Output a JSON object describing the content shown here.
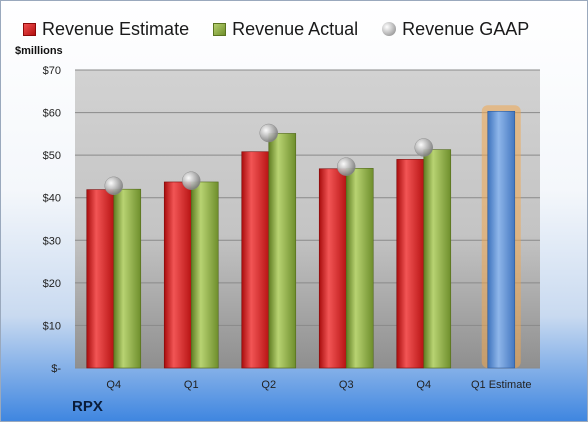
{
  "legend": {
    "estimate": "Revenue Estimate",
    "actual": "Revenue Actual",
    "gaap": "Revenue GAAP"
  },
  "unit_label": "$millions",
  "company": "RPX",
  "colors": {
    "estimate": "#d42222",
    "actual": "#8fb040",
    "gaap": "#b0b0b0",
    "forecast": "#5f94d8",
    "forecast_glow": "#f0a850"
  },
  "chart_data": {
    "type": "bar",
    "categories": [
      "Q4",
      "Q1",
      "Q2",
      "Q3",
      "Q4",
      "Q1 Estimate"
    ],
    "ylim": [
      0,
      70
    ],
    "y_ticks": [
      {
        "value": 0,
        "label": "$-"
      },
      {
        "value": 10,
        "label": "$10"
      },
      {
        "value": 20,
        "label": "$20"
      },
      {
        "value": 30,
        "label": "$30"
      },
      {
        "value": 40,
        "label": "$40"
      },
      {
        "value": 50,
        "label": "$50"
      },
      {
        "value": 60,
        "label": "$60"
      },
      {
        "value": 70,
        "label": "$70"
      }
    ],
    "grid": true,
    "legend_position": "top",
    "series": [
      {
        "name": "Revenue Estimate",
        "values": [
          41.9,
          43.7,
          50.8,
          46.8,
          49.0,
          null
        ]
      },
      {
        "name": "Revenue Actual",
        "values": [
          42.0,
          43.7,
          55.1,
          46.9,
          51.3,
          null
        ]
      },
      {
        "name": "Revenue GAAP",
        "values": [
          42.8,
          44.0,
          55.2,
          47.3,
          51.8,
          null
        ]
      }
    ],
    "forecast": {
      "category_index": 5,
      "value": 60.3
    }
  }
}
